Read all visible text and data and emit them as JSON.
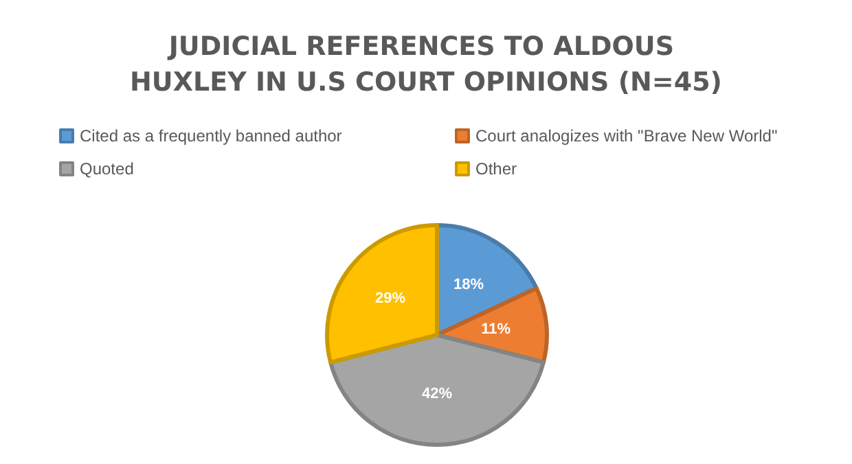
{
  "chart_data": {
    "type": "pie",
    "title": "JUDICIAL REFERENCES TO ALDOUS HUXLEY IN U.S COURT OPINIONS (N=45)",
    "categories": [
      "Cited as a frequently banned author",
      "Court analogizes with \"Brave New World\"",
      "Quoted",
      "Other"
    ],
    "values": [
      18,
      11,
      42,
      29
    ],
    "colors": [
      "#5b9bd5",
      "#ed7d31",
      "#a5a5a5",
      "#ffc000"
    ],
    "value_labels": [
      "18%",
      "11%",
      "42%",
      "29%"
    ],
    "legend": "top"
  }
}
